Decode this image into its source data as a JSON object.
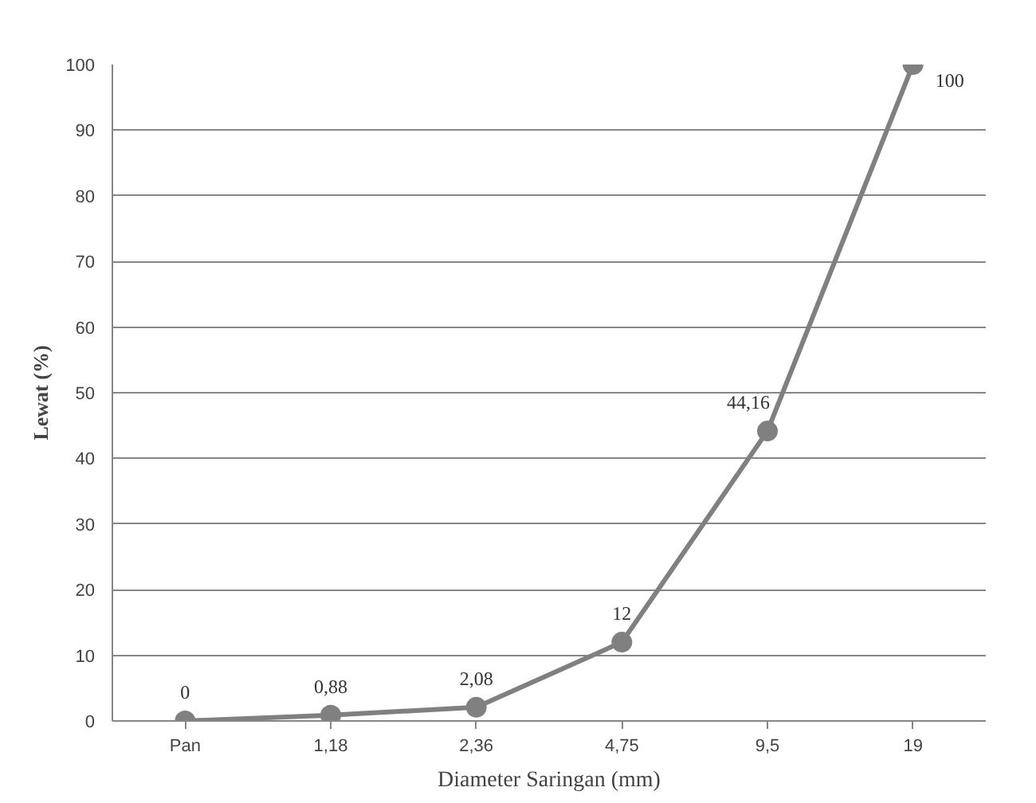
{
  "chart_data": {
    "type": "line",
    "xlabel": "Diameter Saringan (mm)",
    "ylabel": "Lewat (%)",
    "categories": [
      "Pan",
      "1,18",
      "2,36",
      "4,75",
      "9,5",
      "19"
    ],
    "series": [
      {
        "color": "#808080",
        "values": [
          0,
          0.88,
          2.08,
          12,
          44.16,
          100
        ]
      }
    ],
    "value_labels": [
      "0",
      "0,88",
      "2,08",
      "12",
      "44,16",
      "100"
    ],
    "ylim": [
      0,
      100
    ],
    "yticks": [
      0,
      10,
      20,
      30,
      40,
      50,
      60,
      70,
      80,
      90,
      100
    ],
    "grid": "y",
    "marker": "circle",
    "line_style": "solid"
  }
}
